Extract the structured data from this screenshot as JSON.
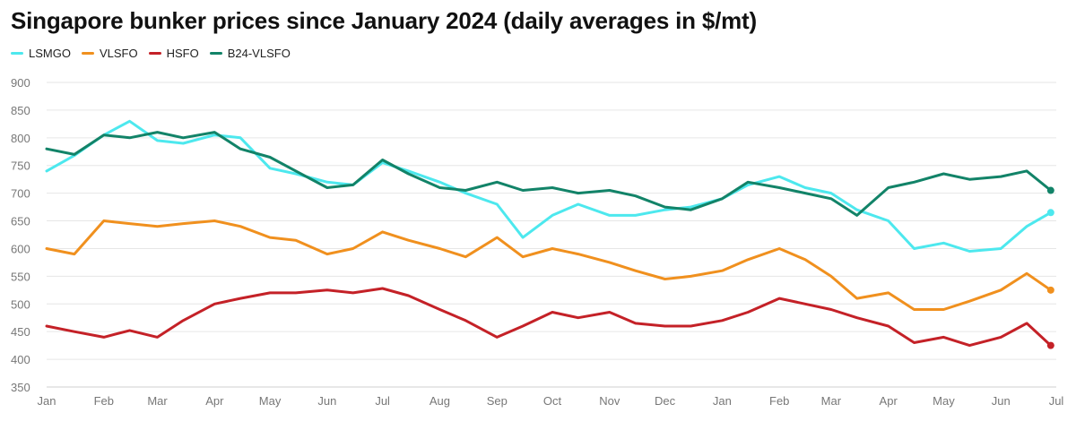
{
  "title": "Singapore bunker prices since January 2024 (daily averages in $/mt)",
  "chart_data": {
    "type": "line",
    "title": "Singapore bunker prices since January 2024 (daily averages in $/mt)",
    "xlabel": "",
    "ylabel": "",
    "ylim": [
      350,
      900
    ],
    "yticks": [
      350,
      400,
      450,
      500,
      550,
      600,
      650,
      700,
      750,
      800,
      850,
      900
    ],
    "xticks": [
      "Jan",
      "Feb",
      "Mar",
      "Apr",
      "May",
      "Jun",
      "Jul",
      "Aug",
      "Sep",
      "Oct",
      "Nov",
      "Dec",
      "Jan",
      "Feb",
      "Mar",
      "Apr",
      "May",
      "Jun",
      "Jul"
    ],
    "grid": "horizontal",
    "legend_position": "top-left",
    "x": [
      "2024-01-01",
      "2024-01-16",
      "2024-02-01",
      "2024-02-15",
      "2024-03-01",
      "2024-03-15",
      "2024-04-01",
      "2024-04-15",
      "2024-05-01",
      "2024-05-15",
      "2024-06-01",
      "2024-06-15",
      "2024-07-01",
      "2024-07-15",
      "2024-08-01",
      "2024-08-15",
      "2024-09-01",
      "2024-09-15",
      "2024-10-01",
      "2024-10-15",
      "2024-11-01",
      "2024-11-15",
      "2024-12-01",
      "2024-12-15",
      "2025-01-01",
      "2025-01-15",
      "2025-02-01",
      "2025-02-15",
      "2025-03-01",
      "2025-03-15",
      "2025-04-01",
      "2025-04-15",
      "2025-05-01",
      "2025-05-15",
      "2025-06-01",
      "2025-06-15",
      "2025-06-28"
    ],
    "series": [
      {
        "name": "LSMGO",
        "color": "#4de8ee",
        "values": [
          740,
          768,
          805,
          830,
          795,
          790,
          805,
          800,
          745,
          735,
          720,
          715,
          755,
          740,
          720,
          700,
          680,
          620,
          660,
          680,
          660,
          660,
          670,
          675,
          690,
          715,
          730,
          710,
          700,
          670,
          650,
          600,
          610,
          595,
          600,
          640,
          665
        ]
      },
      {
        "name": "VLSFO",
        "color": "#f0901e",
        "values": [
          600,
          590,
          650,
          645,
          640,
          645,
          650,
          640,
          620,
          615,
          590,
          600,
          630,
          615,
          600,
          585,
          620,
          585,
          600,
          590,
          575,
          560,
          545,
          550,
          560,
          580,
          600,
          580,
          550,
          510,
          520,
          490,
          490,
          505,
          525,
          555,
          525
        ]
      },
      {
        "name": "HSFO",
        "color": "#c42127",
        "values": [
          460,
          450,
          440,
          452,
          440,
          470,
          500,
          510,
          520,
          520,
          525,
          520,
          528,
          515,
          490,
          470,
          440,
          460,
          485,
          475,
          485,
          465,
          460,
          460,
          470,
          485,
          510,
          500,
          490,
          475,
          460,
          430,
          440,
          425,
          440,
          465,
          425
        ]
      },
      {
        "name": "B24-VLSFO",
        "color": "#128368",
        "values": [
          780,
          770,
          805,
          800,
          810,
          800,
          810,
          780,
          765,
          740,
          710,
          715,
          760,
          735,
          710,
          705,
          720,
          705,
          710,
          700,
          705,
          695,
          675,
          670,
          690,
          720,
          710,
          700,
          690,
          660,
          710,
          720,
          735,
          725,
          730,
          740,
          705
        ]
      }
    ]
  }
}
